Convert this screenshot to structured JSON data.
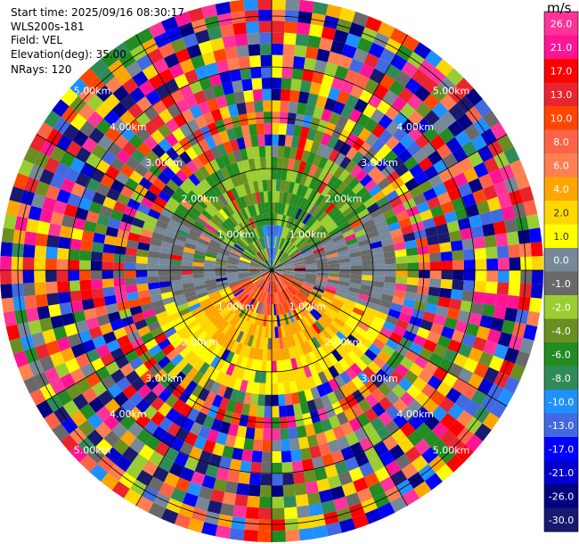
{
  "header": {
    "start_time": "Start time: 2025/09/16 08:30:17",
    "site": "WLS200s-181",
    "field": "Field: VEL",
    "elevation": "Elevation(deg): 35.00",
    "nrays": "NRays: 120"
  },
  "colorbar": {
    "unit": "m/s",
    "ticks": [
      "26.0",
      "21.0",
      "17.0",
      "13.0",
      "10.0",
      "8.0",
      "6.0",
      "4.0",
      "2.0",
      "1.0",
      "0.0",
      "-1.0",
      "-2.0",
      "-4.0",
      "-6.0",
      "-8.0",
      "-10.0",
      "-13.0",
      "-17.0",
      "-21.0",
      "-26.0",
      "-30.0"
    ],
    "colors": [
      "#ff3399",
      "#ff1493",
      "#ff0000",
      "#e8242e",
      "#ff4500",
      "#ff6347",
      "#ff7f50",
      "#ffa500",
      "#ffd700",
      "#ffff00",
      "#778899",
      "#696969",
      "#9acd32",
      "#6b8e23",
      "#228b22",
      "#2e8b57",
      "#1e90ff",
      "#4169e1",
      "#0000ff",
      "#0000cd",
      "#000080",
      "#191970"
    ]
  },
  "chart_data": {
    "type": "heatmap",
    "subtype": "ppi-polar",
    "field": "VEL",
    "units": "m/s",
    "nrays": 120,
    "elevation_deg": 35.0,
    "range_ring_labels": [
      "1.00km",
      "2.00km",
      "3.00km",
      "4.00km",
      "5.00km"
    ],
    "range_max_km": 5.4,
    "vmin": -30.0,
    "vmax": 26.0,
    "pattern": {
      "inner_radius_km": 2.5,
      "north_sector": "negative velocities (-2 to -10 m/s), strongest near center",
      "south_sector": "positive velocities (2 to 13 m/s), strongest near center",
      "outer": "noise / random values beyond ~2.5 km"
    }
  }
}
